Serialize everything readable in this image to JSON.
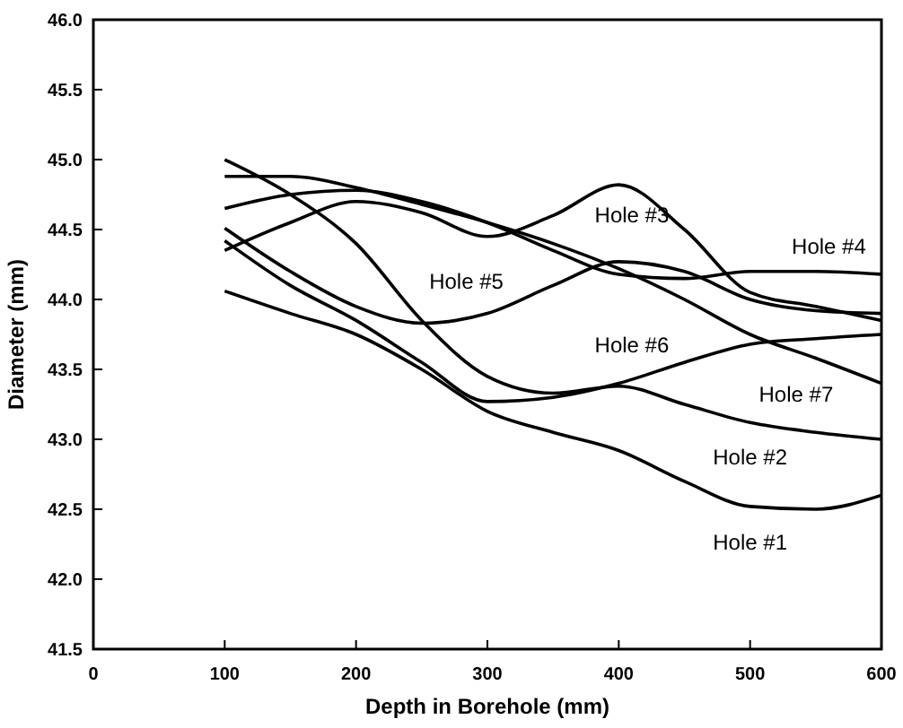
{
  "chart_data": {
    "type": "line",
    "xlabel": "Depth in Borehole  (mm)",
    "ylabel": "Diameter  (mm)",
    "x": [
      100,
      150,
      200,
      250,
      300,
      350,
      400,
      450,
      500,
      550,
      600
    ],
    "series": [
      {
        "name": "Hole #1",
        "color": "#000000",
        "values": [
          44.06,
          43.9,
          43.75,
          43.5,
          43.2,
          43.05,
          42.92,
          42.7,
          42.52,
          42.5,
          42.6
        ]
      },
      {
        "name": "Hole #2",
        "color": "#000000",
        "values": [
          45.0,
          44.75,
          44.4,
          43.85,
          43.45,
          43.33,
          43.38,
          43.25,
          43.12,
          43.05,
          43.0
        ]
      },
      {
        "name": "Hole #3",
        "color": "#000000",
        "values": [
          44.35,
          44.55,
          44.7,
          44.62,
          44.45,
          44.6,
          44.82,
          44.5,
          44.05,
          43.95,
          43.85
        ]
      },
      {
        "name": "Hole #4",
        "color": "#000000",
        "values": [
          44.65,
          44.75,
          44.78,
          44.7,
          44.55,
          44.35,
          44.18,
          44.15,
          44.2,
          44.2,
          44.18
        ]
      },
      {
        "name": "Hole #5",
        "color": "#000000",
        "values": [
          44.51,
          44.2,
          43.95,
          43.83,
          43.9,
          44.1,
          44.27,
          44.2,
          44.0,
          43.92,
          43.9
        ]
      },
      {
        "name": "Hole #6",
        "color": "#000000",
        "values": [
          44.42,
          44.1,
          43.85,
          43.55,
          43.27,
          43.3,
          43.4,
          43.55,
          43.68,
          43.72,
          43.75
        ]
      },
      {
        "name": "Hole #7",
        "color": "#000000",
        "values": [
          44.88,
          44.88,
          44.8,
          44.68,
          44.55,
          44.4,
          44.22,
          44.0,
          43.75,
          43.58,
          43.4
        ]
      }
    ],
    "xlim": [
      0,
      600
    ],
    "xticks": [
      0,
      100,
      200,
      300,
      400,
      500,
      600
    ],
    "ylim": [
      41.5,
      46.0
    ],
    "yticks": [
      41.5,
      {
        "value": 42,
        "label": "42.0"
      },
      42.5,
      {
        "value": 43,
        "label": "43.0"
      },
      43.5,
      {
        "value": 44,
        "label": "44.0"
      },
      44.5,
      {
        "value": 45,
        "label": "45.0"
      },
      45.5,
      {
        "value": 46,
        "label": "46.0"
      }
    ],
    "grid": false,
    "marker": "none",
    "line_style": "solid"
  }
}
